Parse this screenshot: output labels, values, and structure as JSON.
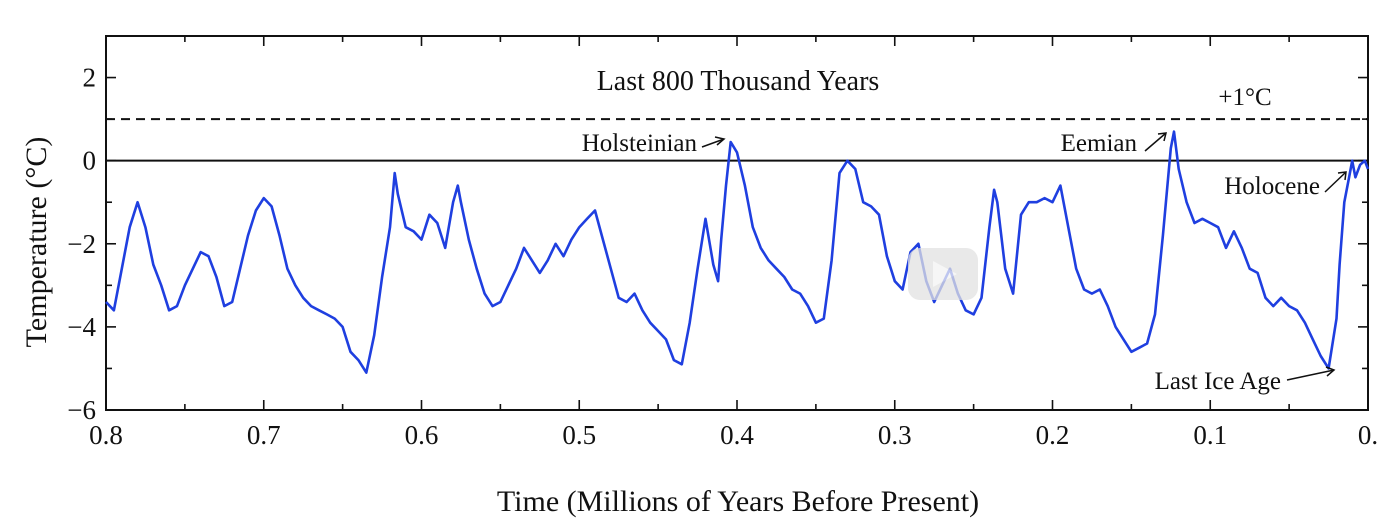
{
  "chart_data": {
    "type": "line",
    "title": "Last 800 Thousand Years",
    "xlabel": "Time (Millions of Years Before Present)",
    "ylabel": "Temperature (°C)",
    "xlim": [
      0.8,
      0.0
    ],
    "ylim": [
      -6,
      3
    ],
    "x_ticks": [
      0.8,
      0.7,
      0.6,
      0.5,
      0.4,
      0.3,
      0.2,
      0.1,
      0.0
    ],
    "x_tick_labels": [
      "0.8",
      "0.7",
      "0.6",
      "0.5",
      "0.4",
      "0.3",
      "0.2",
      "0.1",
      "0."
    ],
    "y_ticks": [
      2,
      0,
      -2,
      -4,
      -6
    ],
    "y_tick_labels": [
      "2",
      "0",
      "−2",
      "−4",
      "−6"
    ],
    "grid": false,
    "line_color": "#1f3fe0",
    "reference_lines": [
      {
        "y": 0,
        "style": "solid",
        "label": ""
      },
      {
        "y": 1,
        "style": "dashed",
        "label": "+1°C"
      }
    ],
    "annotations": [
      {
        "text": "Holsteinian",
        "x": 0.404,
        "y": 0.45
      },
      {
        "text": "Eemian",
        "x": 0.123,
        "y": 0.7
      },
      {
        "text": "Holocene",
        "x": 0.008,
        "y": -0.3
      },
      {
        "text": "Last Ice Age",
        "x": 0.02,
        "y": -5.0
      }
    ],
    "series": [
      {
        "x": [
          0.8,
          0.795,
          0.79,
          0.785,
          0.78,
          0.775,
          0.77,
          0.765,
          0.76,
          0.755,
          0.75,
          0.745,
          0.74,
          0.735,
          0.73,
          0.725,
          0.72,
          0.715,
          0.71,
          0.705,
          0.7,
          0.695,
          0.69,
          0.685,
          0.68,
          0.675,
          0.67,
          0.665,
          0.66,
          0.655,
          0.65,
          0.645,
          0.64,
          0.635,
          0.63,
          0.625,
          0.62,
          0.617,
          0.615,
          0.61,
          0.605,
          0.6,
          0.595,
          0.59,
          0.585,
          0.58,
          0.577,
          0.575,
          0.57,
          0.565,
          0.56,
          0.555,
          0.55,
          0.545,
          0.54,
          0.535,
          0.53,
          0.525,
          0.52,
          0.515,
          0.51,
          0.505,
          0.5,
          0.495,
          0.49,
          0.485,
          0.48,
          0.475,
          0.47,
          0.465,
          0.46,
          0.455,
          0.45,
          0.445,
          0.44,
          0.435,
          0.43,
          0.425,
          0.42,
          0.415,
          0.412,
          0.41,
          0.407,
          0.404,
          0.4,
          0.395,
          0.39,
          0.385,
          0.38,
          0.375,
          0.37,
          0.365,
          0.36,
          0.355,
          0.35,
          0.345,
          0.34,
          0.335,
          0.33,
          0.325,
          0.32,
          0.315,
          0.31,
          0.305,
          0.3,
          0.295,
          0.29,
          0.285,
          0.28,
          0.275,
          0.27,
          0.265,
          0.26,
          0.255,
          0.25,
          0.245,
          0.24,
          0.237,
          0.235,
          0.23,
          0.225,
          0.22,
          0.215,
          0.21,
          0.205,
          0.2,
          0.195,
          0.19,
          0.185,
          0.18,
          0.175,
          0.17,
          0.165,
          0.16,
          0.155,
          0.15,
          0.145,
          0.14,
          0.135,
          0.13,
          0.125,
          0.123,
          0.12,
          0.115,
          0.11,
          0.105,
          0.1,
          0.095,
          0.09,
          0.085,
          0.08,
          0.075,
          0.07,
          0.065,
          0.06,
          0.055,
          0.05,
          0.045,
          0.04,
          0.035,
          0.03,
          0.025,
          0.02,
          0.018,
          0.015,
          0.012,
          0.01,
          0.008,
          0.005,
          0.002,
          0.0
        ],
        "y": [
          -3.4,
          -3.6,
          -2.6,
          -1.6,
          -1.0,
          -1.6,
          -2.5,
          -3.0,
          -3.6,
          -3.5,
          -3.0,
          -2.6,
          -2.2,
          -2.3,
          -2.8,
          -3.5,
          -3.4,
          -2.6,
          -1.8,
          -1.2,
          -0.9,
          -1.1,
          -1.8,
          -2.6,
          -3.0,
          -3.3,
          -3.5,
          -3.6,
          -3.7,
          -3.8,
          -4.0,
          -4.6,
          -4.8,
          -5.1,
          -4.2,
          -2.8,
          -1.6,
          -0.3,
          -0.8,
          -1.6,
          -1.7,
          -1.9,
          -1.3,
          -1.5,
          -2.1,
          -1.0,
          -0.6,
          -1.0,
          -1.9,
          -2.6,
          -3.2,
          -3.5,
          -3.4,
          -3.0,
          -2.6,
          -2.1,
          -2.4,
          -2.7,
          -2.4,
          -2.0,
          -2.3,
          -1.9,
          -1.6,
          -1.4,
          -1.2,
          -1.9,
          -2.6,
          -3.3,
          -3.4,
          -3.2,
          -3.6,
          -3.9,
          -4.1,
          -4.3,
          -4.8,
          -4.9,
          -3.9,
          -2.6,
          -1.4,
          -2.5,
          -2.9,
          -1.9,
          -0.6,
          0.45,
          0.2,
          -0.6,
          -1.6,
          -2.1,
          -2.4,
          -2.6,
          -2.8,
          -3.1,
          -3.2,
          -3.5,
          -3.9,
          -3.8,
          -2.4,
          -0.3,
          0.0,
          -0.2,
          -1.0,
          -1.1,
          -1.3,
          -2.3,
          -2.9,
          -3.1,
          -2.2,
          -2.0,
          -2.9,
          -3.4,
          -3.0,
          -2.6,
          -3.2,
          -3.6,
          -3.7,
          -3.3,
          -1.6,
          -0.7,
          -1.0,
          -2.6,
          -3.2,
          -1.3,
          -1.0,
          -1.0,
          -0.9,
          -1.0,
          -0.6,
          -1.6,
          -2.6,
          -3.1,
          -3.2,
          -3.1,
          -3.5,
          -4.0,
          -4.3,
          -4.6,
          -4.5,
          -4.4,
          -3.7,
          -1.8,
          0.3,
          0.7,
          -0.2,
          -1.0,
          -1.5,
          -1.4,
          -1.5,
          -1.6,
          -2.1,
          -1.7,
          -2.1,
          -2.6,
          -2.7,
          -3.3,
          -3.5,
          -3.3,
          -3.5,
          -3.6,
          -3.9,
          -4.3,
          -4.7,
          -5.0,
          -3.8,
          -2.5,
          -1.0,
          -0.4,
          0.0,
          -0.4,
          -0.1,
          0.0,
          -0.2
        ]
      }
    ]
  }
}
